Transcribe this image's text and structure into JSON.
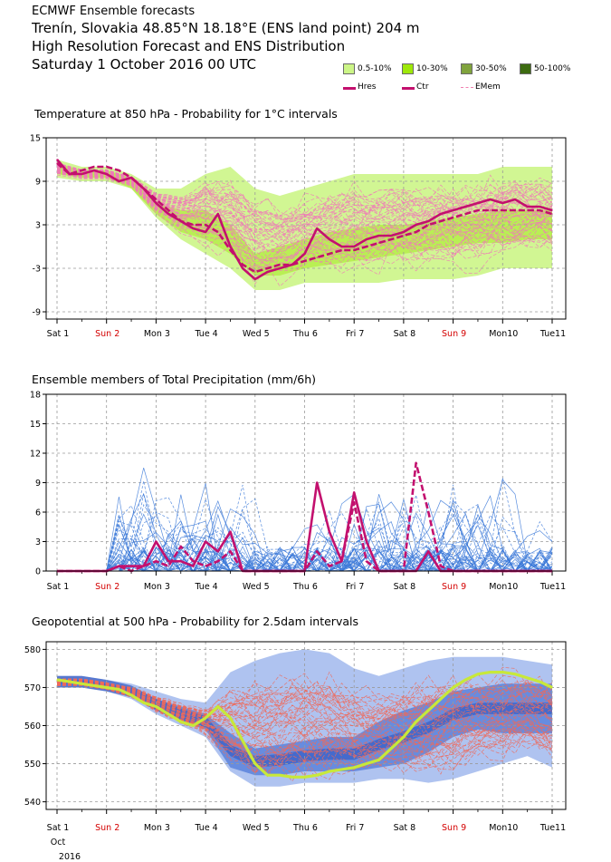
{
  "header": {
    "org": "ECMWF Ensemble forecasts",
    "location": "Trenín, Slovakia 48.85°N 18.18°E (ENS land point) 204 m",
    "product": "High Resolution Forecast and ENS Distribution",
    "date": "Saturday  1 October 2016 00 UTC"
  },
  "legend": {
    "bands": [
      {
        "label": "0.5-10%",
        "color": "#ccf587"
      },
      {
        "label": "10-30%",
        "color": "#9ee80a"
      },
      {
        "label": "30-50%",
        "color": "#80a33d"
      },
      {
        "label": "50-100%",
        "color": "#3d6b11"
      }
    ],
    "lines": [
      {
        "label": "Hres",
        "color": "#c3106e",
        "style": "solid"
      },
      {
        "label": "Ctr",
        "color": "#c3106e",
        "style": "solid"
      },
      {
        "label": "EMem",
        "color": "#f080b0",
        "style": "dashed"
      }
    ]
  },
  "colors": {
    "hres": "#c3106e",
    "ctrl": "#c3106e",
    "emem_temp": "#f07ab8",
    "emem_precip": "#3a78d8",
    "emem_geo": "#ef6a5a",
    "geo_band_outer": "#a6bcee",
    "geo_band_inner": "#5f86dd",
    "geo_band_core": "#3a5fc5",
    "geo_hres": "#c8e83a",
    "grid": "#9a9a9a",
    "sunday": "#d40000"
  },
  "x_axis": {
    "days": [
      "Sat 1",
      "Sun 2",
      "Mon 3",
      "Tue 4",
      "Wed 5",
      "Thu 6",
      "Fri 7",
      "Sat 8",
      "Sun 9",
      "Mon10",
      "Tue11"
    ],
    "sunday_labels": [
      "Sun 2",
      "Sun 9"
    ],
    "sub_month": "Oct",
    "sub_year": "2016"
  },
  "chart_data": [
    {
      "type": "area",
      "title": "Temperature at 850 hPa - Probability for 1°C intervals",
      "xlabel": "",
      "ylabel": "",
      "ylim": [
        -10,
        15
      ],
      "yticks": [
        15,
        9,
        3,
        -3,
        -9
      ],
      "x_unit": "days since Sat 1 00 UTC",
      "bands": {
        "x": [
          0,
          0.5,
          1,
          1.5,
          2,
          2.5,
          3,
          3.5,
          4,
          4.5,
          5,
          5.5,
          6,
          6.5,
          7,
          7.5,
          8,
          8.5,
          9,
          9.5,
          10
        ],
        "p05_low": [
          9.5,
          9,
          9,
          8,
          4,
          1,
          -1,
          -3,
          -6,
          -6,
          -5,
          -5,
          -5,
          -5,
          -4.5,
          -4.5,
          -4.5,
          -4,
          -3,
          -3,
          -3
        ],
        "p05_high": [
          12,
          11,
          11,
          10,
          8,
          8,
          10,
          11,
          8,
          7,
          8,
          9,
          10,
          10,
          10,
          10,
          10,
          10,
          11,
          11,
          11
        ],
        "p30_low": [
          10,
          9.5,
          9.5,
          8,
          4.5,
          2,
          1,
          -1,
          -4,
          -4,
          -3,
          -2.5,
          -2,
          -1.5,
          -1,
          -0.5,
          0,
          0.5,
          0.5,
          1,
          1
        ],
        "p30_high": [
          11.5,
          10.5,
          10.5,
          9.5,
          6,
          5,
          5,
          3,
          -1,
          0,
          1,
          2,
          2.5,
          3,
          3,
          3.5,
          4,
          4.5,
          5,
          5,
          5
        ]
      },
      "series": [
        {
          "name": "Hres",
          "x": [
            0,
            0.25,
            0.5,
            0.75,
            1,
            1.25,
            1.5,
            1.75,
            2,
            2.25,
            2.5,
            2.75,
            3,
            3.25,
            3.5,
            3.75,
            4,
            4.25,
            4.5,
            4.75,
            5,
            5.25,
            5.5,
            5.75,
            6,
            6.25,
            6.5,
            6.75,
            7,
            7.25,
            7.5,
            7.75,
            8,
            8.25,
            8.5,
            8.75,
            9,
            9.25,
            9.5,
            9.75,
            10
          ],
          "y": [
            12,
            10,
            10,
            10.5,
            10,
            9,
            9.5,
            8,
            6,
            4.5,
            3.5,
            2.5,
            2,
            4.5,
            0,
            -3,
            -4.5,
            -3.5,
            -3,
            -2.5,
            -1,
            2.5,
            1,
            0,
            0,
            1,
            1.5,
            1.5,
            2,
            3,
            3.5,
            4.5,
            5,
            5.5,
            6,
            6.5,
            6,
            6.5,
            5.5,
            5.5,
            5
          ]
        },
        {
          "name": "Ctr",
          "x": [
            0,
            0.25,
            0.5,
            0.75,
            1,
            1.25,
            1.5,
            1.75,
            2,
            2.25,
            2.5,
            2.75,
            3,
            3.25,
            3.5,
            3.75,
            4,
            4.25,
            4.5,
            4.75,
            5,
            5.25,
            5.5,
            5.75,
            6,
            6.25,
            6.5,
            6.75,
            7,
            7.25,
            7.5,
            7.75,
            8,
            8.25,
            8.5,
            8.75,
            9,
            9.25,
            9.5,
            9.75,
            10
          ],
          "y": [
            11.5,
            10,
            10.5,
            11,
            11,
            10.5,
            9.5,
            8,
            6.5,
            5,
            3.5,
            3,
            3,
            2,
            -0.5,
            -2.5,
            -3.5,
            -3,
            -2.5,
            -2.5,
            -2,
            -1.5,
            -1,
            -0.5,
            -0.5,
            0,
            0.5,
            1,
            1.5,
            2,
            3,
            3.5,
            4,
            4.5,
            5,
            5,
            5,
            5,
            5,
            5,
            4.5
          ]
        }
      ]
    },
    {
      "type": "line",
      "title": "Ensemble members of Total Precipitation (mm/6h)",
      "xlabel": "",
      "ylabel": "",
      "ylim": [
        0,
        18
      ],
      "yticks": [
        18,
        15,
        12,
        9,
        6,
        3,
        0
      ],
      "x_unit": "days since Sat 1 00 UTC",
      "series": [
        {
          "name": "Hres",
          "x": [
            0,
            1,
            1.25,
            1.5,
            1.75,
            2,
            2.25,
            2.5,
            2.75,
            3,
            3.25,
            3.5,
            3.75,
            4,
            4.25,
            4.5,
            4.75,
            5,
            5.25,
            5.5,
            5.75,
            6,
            6.25,
            6.5,
            6.75,
            7,
            7.25,
            7.5,
            7.75,
            8,
            8.25,
            8.5,
            9,
            10
          ],
          "y": [
            0,
            0,
            0.5,
            0.5,
            0.5,
            3,
            1,
            1,
            0.5,
            3,
            2,
            4,
            0,
            0,
            0,
            0,
            0,
            0,
            9,
            4,
            1,
            8,
            3,
            0,
            0,
            0,
            0,
            2,
            0,
            0,
            0,
            0,
            0,
            0
          ]
        },
        {
          "name": "Ctr",
          "x": [
            0,
            1,
            1.25,
            1.5,
            1.75,
            2,
            2.25,
            2.5,
            2.75,
            3,
            3.25,
            3.5,
            3.75,
            4,
            4.25,
            4.5,
            4.75,
            5,
            5.25,
            5.5,
            5.75,
            6,
            6.25,
            6.5,
            6.75,
            7,
            7.25,
            7.5,
            7.75,
            8,
            8.25,
            8.5,
            9,
            10
          ],
          "y": [
            0,
            0,
            0.5,
            0,
            0.5,
            1,
            0.5,
            2.5,
            1,
            0.5,
            1,
            2,
            0,
            0,
            0,
            0,
            0,
            0,
            2,
            0.5,
            1,
            7,
            1,
            0,
            0,
            0,
            11,
            6,
            0.5,
            0,
            0,
            0,
            0,
            0
          ]
        }
      ]
    },
    {
      "type": "area",
      "title": "Geopotential at 500 hPa - Probability for 2.5dam intervals",
      "xlabel": "",
      "ylabel": "",
      "ylim": [
        538,
        582
      ],
      "yticks": [
        580,
        570,
        560,
        550,
        540
      ],
      "x_unit": "days since Sat 1 00 UTC",
      "bands": {
        "x": [
          0,
          0.5,
          1,
          1.5,
          2,
          2.5,
          3,
          3.5,
          4,
          4.5,
          5,
          5.5,
          6,
          6.5,
          7,
          7.5,
          8,
          8.5,
          9,
          9.5,
          10
        ],
        "outer_low": [
          570,
          570,
          569,
          567,
          563,
          560,
          557,
          548,
          544,
          544,
          545,
          545,
          545,
          546,
          546,
          545,
          546,
          548,
          550,
          552,
          549
        ],
        "outer_high": [
          573,
          573,
          572,
          571,
          569,
          567,
          566,
          574,
          577,
          579,
          580,
          579,
          575,
          573,
          575,
          577,
          578,
          578,
          578,
          577,
          576
        ],
        "inner_low": [
          571,
          571,
          570,
          568,
          564,
          561,
          559,
          549,
          547,
          547,
          548,
          548,
          548,
          549,
          550,
          553,
          557,
          559,
          558,
          558,
          558
        ],
        "inner_high": [
          572,
          572,
          571,
          570,
          567,
          565,
          563,
          558,
          554,
          555,
          556,
          557,
          557,
          561,
          564,
          566,
          569,
          570,
          571,
          571,
          571
        ]
      },
      "series": [
        {
          "name": "Hres",
          "x": [
            0,
            0.25,
            0.5,
            0.75,
            1,
            1.25,
            1.5,
            1.75,
            2,
            2.25,
            2.5,
            2.75,
            3,
            3.25,
            3.5,
            3.75,
            4,
            4.25,
            4.5,
            4.75,
            5,
            5.25,
            5.5,
            5.75,
            6,
            6.25,
            6.5,
            6.75,
            7,
            7.25,
            7.5,
            7.75,
            8,
            8.25,
            8.5,
            8.75,
            9,
            9.25,
            9.5,
            9.75,
            10
          ],
          "y": [
            572,
            571.5,
            571,
            570.5,
            570,
            569.5,
            568,
            566,
            565,
            563,
            561,
            560,
            562,
            565,
            562,
            556,
            550,
            547,
            547,
            546.5,
            546.5,
            547,
            548,
            548.5,
            549,
            550,
            551,
            554,
            557,
            561,
            564,
            567,
            570,
            572,
            573.5,
            574,
            574,
            573.5,
            572.5,
            571.5,
            570
          ]
        }
      ]
    }
  ]
}
